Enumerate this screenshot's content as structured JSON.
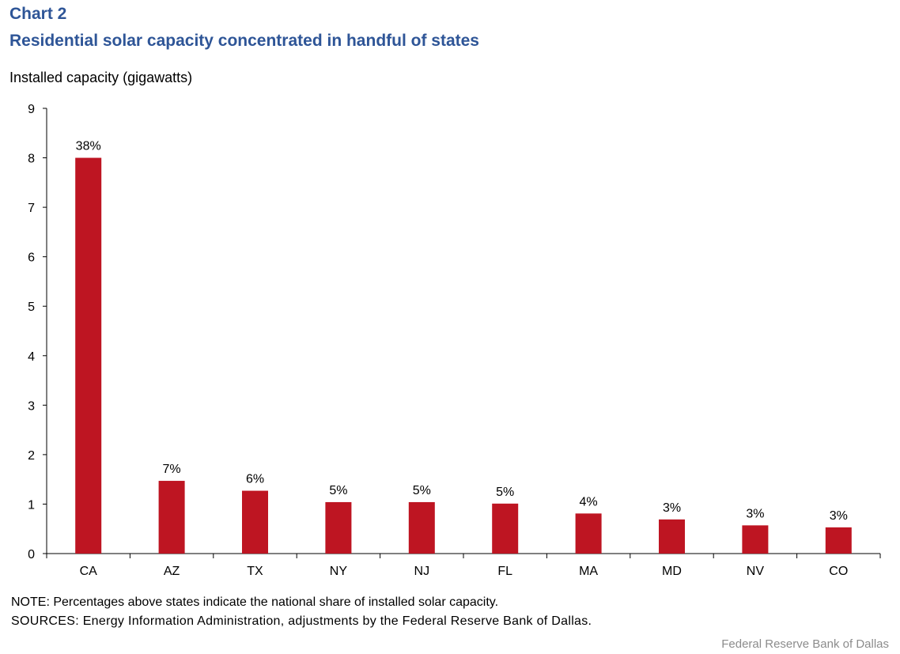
{
  "header": {
    "chart_number": "Chart 2",
    "title": "Residential solar capacity concentrated in handful of states"
  },
  "colors": {
    "bar": "#be1522",
    "title": "#2e5597"
  },
  "chart_data": {
    "type": "bar",
    "title": "Residential solar capacity concentrated in handful of states",
    "ylabel": "Installed capacity (gigawatts)",
    "xlabel": "",
    "ylim": [
      0,
      9
    ],
    "yticks": [
      0,
      1,
      2,
      3,
      4,
      5,
      6,
      7,
      8,
      9
    ],
    "grid": false,
    "categories": [
      "CA",
      "AZ",
      "TX",
      "NY",
      "NJ",
      "FL",
      "MA",
      "MD",
      "NV",
      "CO"
    ],
    "values": [
      8.0,
      1.47,
      1.27,
      1.04,
      1.04,
      1.01,
      0.81,
      0.69,
      0.57,
      0.53
    ],
    "data_labels": [
      "38%",
      "7%",
      "6%",
      "5%",
      "5%",
      "5%",
      "4%",
      "3%",
      "3%",
      "3%"
    ]
  },
  "footer": {
    "note": "NOTE: Percentages above states indicate the national share of installed solar capacity.",
    "sources": "SOURCES: Energy Information Administration, adjustments by the Federal Reserve Bank of Dallas.",
    "credit": "Federal Reserve  Bank of Dallas"
  }
}
